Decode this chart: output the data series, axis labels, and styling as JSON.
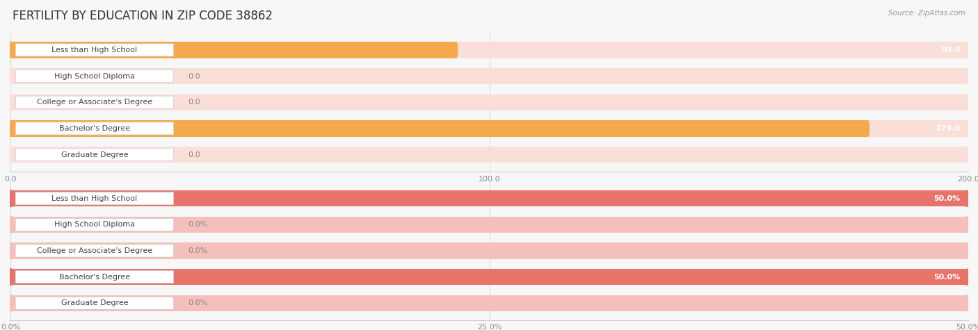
{
  "title": "FERTILITY BY EDUCATION IN ZIP CODE 38862",
  "source": "Source: ZipAtlas.com",
  "top_chart": {
    "categories": [
      "Less than High School",
      "High School Diploma",
      "College or Associate's Degree",
      "Bachelor's Degree",
      "Graduate Degree"
    ],
    "values": [
      93.0,
      0.0,
      0.0,
      179.0,
      0.0
    ],
    "bar_color_full": "#F5A94E",
    "bar_color_light": "#FADED8",
    "xlim": [
      0,
      200
    ],
    "xticks": [
      0.0,
      100.0,
      200.0
    ],
    "xtick_labels": [
      "0.0",
      "100.0",
      "200.0"
    ]
  },
  "bottom_chart": {
    "categories": [
      "Less than High School",
      "High School Diploma",
      "College or Associate's Degree",
      "Bachelor's Degree",
      "Graduate Degree"
    ],
    "values": [
      50.0,
      0.0,
      0.0,
      50.0,
      0.0
    ],
    "bar_color_full": "#E8736A",
    "bar_color_light": "#F5C0BC",
    "xlim": [
      0,
      50
    ],
    "xticks": [
      0.0,
      25.0,
      50.0
    ],
    "xtick_labels": [
      "0.0%",
      "25.0%",
      "50.0%"
    ]
  },
  "background_color": "#f7f7f7",
  "label_bg_color": "#ffffff",
  "label_text_color": "#444444",
  "value_text_color_inside": "#ffffff",
  "value_text_color_outside": "#888888",
  "title_fontsize": 12,
  "label_fontsize": 8,
  "value_fontsize": 8,
  "tick_fontsize": 8
}
